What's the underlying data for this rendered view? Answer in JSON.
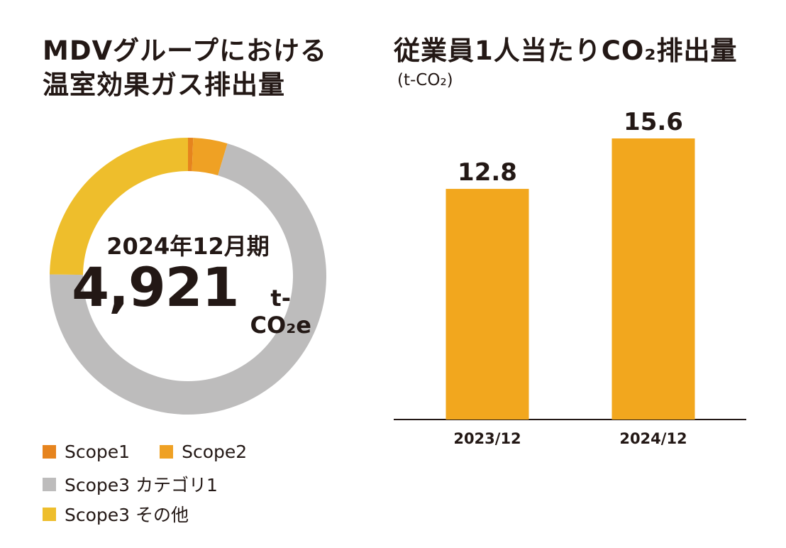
{
  "chart_data": [
    {
      "type": "pie",
      "title_lines": [
        "MDVグループにおける",
        "温室効果ガス排出量"
      ],
      "center_label": "2024年12月期",
      "total_value": "4,921",
      "total_unit": "t-CO₂e",
      "series": [
        {
          "name": "Scope1",
          "value": 0.6,
          "color": "#E6841E"
        },
        {
          "name": "Scope2",
          "value": 4.0,
          "color": "#EFA124"
        },
        {
          "name": "Scope3 カテゴリ1",
          "value": 70.6,
          "color": "#BDBCBC"
        },
        {
          "name": "Scope3 その他",
          "value": 24.8,
          "color": "#EEBE2C"
        }
      ],
      "legend": {
        "row1": [
          "Scope1",
          "Scope2"
        ],
        "row2": [
          "Scope3 カテゴリ1"
        ],
        "row3": [
          "Scope3 その他"
        ]
      }
    },
    {
      "type": "bar",
      "title": "従業員1人当たりCO₂排出量",
      "unit_label": "(t-CO₂)",
      "categories": [
        "2023/12",
        "2024/12"
      ],
      "values": [
        12.8,
        15.6
      ],
      "value_labels": [
        "12.8",
        "15.6"
      ],
      "bar_color": "#F2A71E",
      "ylim": [
        0,
        20
      ]
    }
  ]
}
